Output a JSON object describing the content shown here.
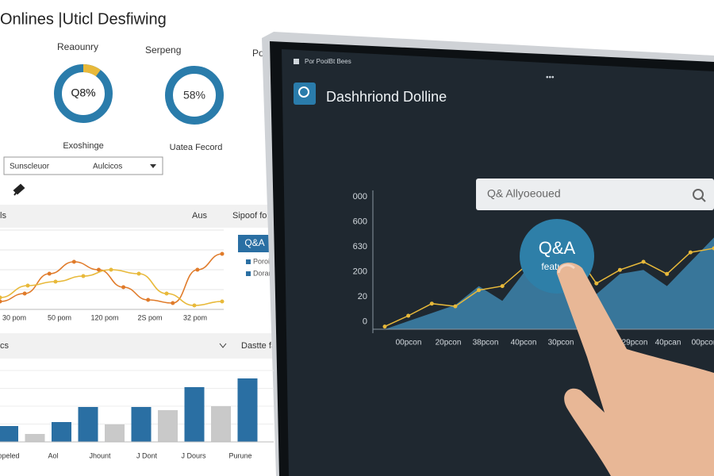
{
  "left_panel": {
    "title": "Onlines |Uticl Desfiwing",
    "cards": [
      {
        "heading": "Reaounry",
        "center": "Q8%",
        "caption": "Exoshinge",
        "highlight_share": 10
      },
      {
        "heading": "Serpeng",
        "center": "58%",
        "caption": "Uatea Fecord"
      }
    ],
    "partial_heading": "Po",
    "dropdown": {
      "left": "Sunscleuor",
      "right": "Aulcicos"
    },
    "line_section": {
      "left": "ls",
      "mid": "Aus",
      "right": "Sipoof fo",
      "button": "Q&A",
      "legend": [
        "Poroit A",
        "Doram"
      ],
      "x_labels": [
        "30 pom",
        "50 pom",
        "120 pom",
        "2S pom",
        "32 pom"
      ],
      "ylim": [
        0,
        100
      ],
      "series": [
        {
          "color": "#e07b2a",
          "values": [
            10,
            20,
            45,
            60,
            50,
            28,
            12,
            8,
            50,
            70
          ]
        },
        {
          "color": "#e8b93a",
          "values": [
            15,
            30,
            35,
            42,
            50,
            45,
            20,
            5,
            10
          ]
        }
      ]
    },
    "bar_section": {
      "left": "cs",
      "right": "Dastte fac",
      "x_labels": [
        "Popeled",
        "Aol",
        "Jhount",
        "J Dont",
        "J Dours",
        "Purune"
      ],
      "ylim": [
        0,
        100
      ],
      "bars": [
        {
          "color": "#2a6fa3",
          "value": 20
        },
        {
          "color": "#c9c9c9",
          "value": 10
        },
        {
          "color": "#2a6fa3",
          "value": 25
        },
        {
          "color": "#2a6fa3",
          "value": 44
        },
        {
          "color": "#c9c9c9",
          "value": 22
        },
        {
          "color": "#2a6fa3",
          "value": 44
        },
        {
          "color": "#c9c9c9",
          "value": 40
        },
        {
          "color": "#2a6fa3",
          "value": 69
        },
        {
          "color": "#c9c9c9",
          "value": 45
        },
        {
          "color": "#2a6fa3",
          "value": 80
        }
      ]
    }
  },
  "tablet": {
    "menu": "Por PoolBt Bees",
    "title": "Dashhriond Dolline",
    "search": "Q& Allyoeoued",
    "bubble": {
      "title": "Q&A",
      "subtitle": "featues"
    },
    "chart": {
      "y_labels": [
        "000",
        "600",
        "630",
        "200",
        "20",
        "0"
      ],
      "x_labels": [
        "00pcon",
        "20pcon",
        "38pcon",
        "40pcon",
        "30pcon",
        "29pcon",
        "40pcan",
        "00pcon"
      ],
      "ylim": [
        0,
        100
      ],
      "area": {
        "color": "#3b7ea6",
        "values": [
          0,
          6,
          12,
          18,
          32,
          21,
          44,
          68,
          56,
          26,
          41,
          44,
          32,
          50,
          68
        ]
      },
      "line": {
        "color": "#e8b93a",
        "values": [
          2,
          10,
          19,
          17,
          29,
          32,
          47,
          54,
          59,
          34,
          44,
          50,
          41,
          57,
          60
        ]
      }
    }
  }
}
